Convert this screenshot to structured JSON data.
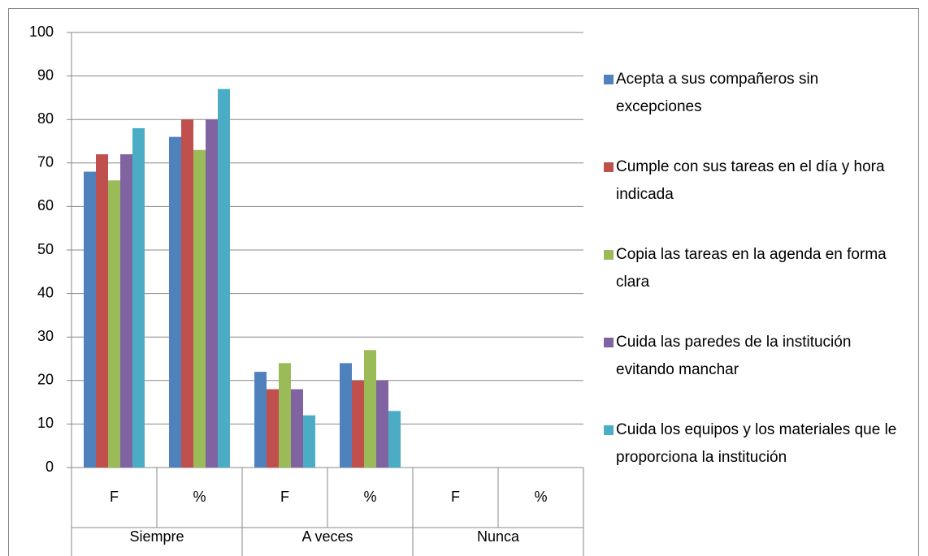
{
  "chart_data": {
    "type": "bar",
    "categories": [
      "F",
      "%",
      "F",
      "%",
      "F",
      "%"
    ],
    "groups": [
      "Siempre",
      "A veces",
      "Nunca"
    ],
    "series": [
      {
        "name": "Acepta a sus compañeros sin excepciones",
        "color": "#4f81bd",
        "values": [
          68,
          76,
          22,
          24,
          0,
          0
        ]
      },
      {
        "name": "Cumple con sus tareas en el día y hora indicada",
        "color": "#c0504d",
        "values": [
          72,
          80,
          18,
          20,
          0,
          0
        ]
      },
      {
        "name": "Copia las tareas en la agenda en forma clara",
        "color": "#9bbb59",
        "values": [
          66,
          73,
          24,
          27,
          0,
          0
        ]
      },
      {
        "name": "Cuida las paredes de la institución evitando manchar",
        "color": "#8064a2",
        "values": [
          72,
          80,
          18,
          20,
          0,
          0
        ]
      },
      {
        "name": "Cuida los equipos y los materiales que le proporciona la institución",
        "color": "#4bacc6",
        "values": [
          78,
          87,
          12,
          13,
          0,
          0
        ]
      }
    ],
    "ylim": [
      0,
      100
    ],
    "yticks": [
      0,
      10,
      20,
      30,
      40,
      50,
      60,
      70,
      80,
      90,
      100
    ],
    "grid": true,
    "legend": "right"
  }
}
